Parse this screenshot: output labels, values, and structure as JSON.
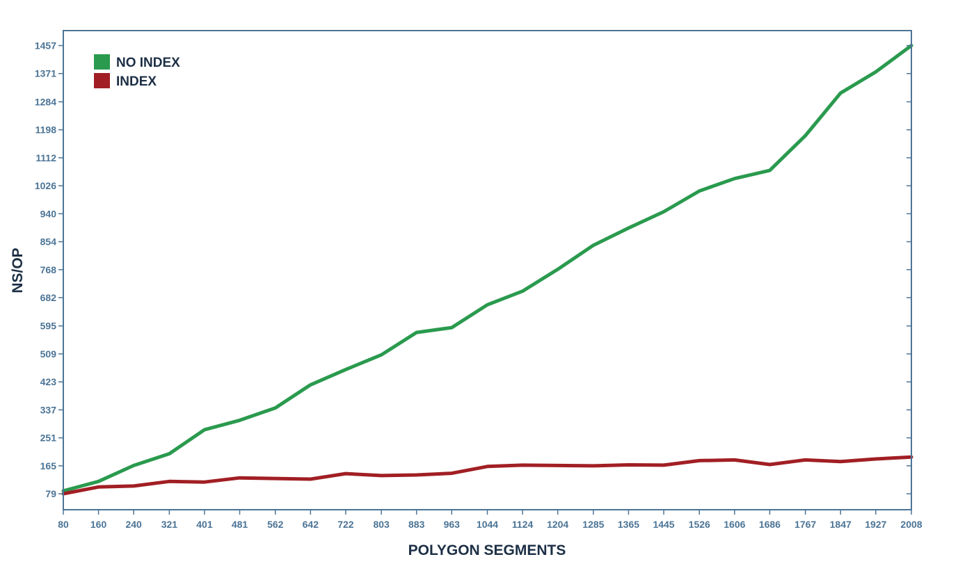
{
  "chart_data": {
    "type": "line",
    "xlabel": "POLYGON SEGMENTS",
    "ylabel": "NS/OP",
    "x_ticks": [
      "80",
      "160",
      "240",
      "321",
      "401",
      "481",
      "562",
      "642",
      "722",
      "803",
      "883",
      "963",
      "1044",
      "1124",
      "1204",
      "1285",
      "1365",
      "1445",
      "1526",
      "1606",
      "1686",
      "1767",
      "1847",
      "1927",
      "2008"
    ],
    "y_ticks": [
      "79",
      "165",
      "251",
      "337",
      "423",
      "509",
      "595",
      "682",
      "768",
      "854",
      "940",
      "1026",
      "1112",
      "1198",
      "1284",
      "1371",
      "1457"
    ],
    "x": [
      80,
      160,
      240,
      321,
      401,
      481,
      562,
      642,
      722,
      803,
      883,
      963,
      1044,
      1124,
      1204,
      1285,
      1365,
      1445,
      1526,
      1606,
      1686,
      1767,
      1847,
      1927,
      2008
    ],
    "ylim": [
      30,
      1503
    ],
    "grid": false,
    "legend_position": "top-left",
    "series": [
      {
        "name": "NO INDEX",
        "color": "#2a9a4e",
        "values": [
          88,
          117,
          166,
          202,
          276,
          305,
          343,
          414,
          461,
          506,
          575,
          590,
          660,
          702,
          769,
          843,
          896,
          946,
          1010,
          1048,
          1073,
          1180,
          1311,
          1376,
          1457
        ]
      },
      {
        "name": "INDEX",
        "color": "#a11f24",
        "values": [
          79,
          100,
          103,
          117,
          115,
          128,
          126,
          124,
          141,
          135,
          137,
          142,
          163,
          167,
          166,
          165,
          168,
          167,
          181,
          183,
          169,
          183,
          178,
          186,
          192
        ]
      }
    ]
  }
}
